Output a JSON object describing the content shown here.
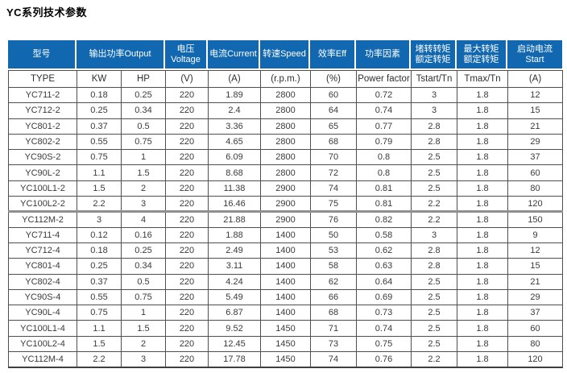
{
  "page": {
    "title": "YC系列技术参数"
  },
  "colors": {
    "header_bg": "#1168b1",
    "header_text": "#ffffff",
    "grid_line": "#4f4f4f",
    "body_text": "#3a3a3a"
  },
  "table": {
    "header": {
      "model": "型号",
      "output": "输出功率Output",
      "voltage": "电压Voltage",
      "current": "电流Current",
      "speed": "转速Speed",
      "eff": "效率Eff",
      "power_factor": "功率因素",
      "tstart_line1": "堵转转矩",
      "tstart_line2": "额定转矩",
      "tmax_line1": "最大转矩",
      "tmax_line2": "额定转矩",
      "start_line1": "启动电流",
      "start_line2": "Start"
    },
    "subheader": [
      "TYPE",
      "KW",
      "HP",
      "(V)",
      "(A)",
      "(r.p.m.)",
      "(%)",
      "Power factor",
      "Tstart/Tn",
      "Tmax/Tn",
      "(A)"
    ],
    "divider_before_rows": [
      8
    ],
    "rows": [
      [
        "YC711-2",
        "0.18",
        "0.25",
        "220",
        "1.89",
        "2800",
        "60",
        "0.72",
        "3",
        "1.8",
        "12"
      ],
      [
        "YC712-2",
        "0.25",
        "0.34",
        "220",
        "2.4",
        "2800",
        "64",
        "0.74",
        "3",
        "1.8",
        "15"
      ],
      [
        "YC801-2",
        "0.37",
        "0.5",
        "220",
        "3.36",
        "2800",
        "65",
        "0.77",
        "2.8",
        "1.8",
        "21"
      ],
      [
        "YC802-2",
        "0.55",
        "0.75",
        "220",
        "4.65",
        "2800",
        "68",
        "0.79",
        "2.8",
        "1.8",
        "29"
      ],
      [
        "YC90S-2",
        "0.75",
        "1",
        "220",
        "6.09",
        "2800",
        "70",
        "0.8",
        "2.5",
        "1.8",
        "37"
      ],
      [
        "YC90L-2",
        "1.1",
        "1.5",
        "220",
        "8.68",
        "2800",
        "72",
        "0.8",
        "2.5",
        "1.8",
        "60"
      ],
      [
        "YC100L1-2",
        "1.5",
        "2",
        "220",
        "11.38",
        "2900",
        "74",
        "0.81",
        "2.5",
        "1.8",
        "80"
      ],
      [
        "YC100L2-2",
        "2.2",
        "3",
        "220",
        "16.46",
        "2900",
        "75",
        "0.81",
        "2.2",
        "1.8",
        "120"
      ],
      [
        "YC112M-2",
        "3",
        "4",
        "220",
        "21.88",
        "2900",
        "76",
        "0.82",
        "2.2",
        "1.8",
        "150"
      ],
      [
        "YC711-4",
        "0.12",
        "0.16",
        "220",
        "1.88",
        "1400",
        "50",
        "0.58",
        "3",
        "1.8",
        "9"
      ],
      [
        "YC712-4",
        "0.18",
        "0.25",
        "220",
        "2.49",
        "1400",
        "53",
        "0.62",
        "2.8",
        "1.8",
        "12"
      ],
      [
        "YC801-4",
        "0.25",
        "0.34",
        "220",
        "3.11",
        "1400",
        "58",
        "0.63",
        "2.8",
        "1.8",
        "15"
      ],
      [
        "YC802-4",
        "0.37",
        "0.5",
        "220",
        "4.24",
        "1400",
        "62",
        "0.64",
        "2.5",
        "1.8",
        "21"
      ],
      [
        "YC90S-4",
        "0.55",
        "0.75",
        "220",
        "5.49",
        "1400",
        "66",
        "0.69",
        "2.5",
        "1.8",
        "29"
      ],
      [
        "YC90L-4",
        "0.75",
        "1",
        "220",
        "6.87",
        "1400",
        "68",
        "0.73",
        "2.5",
        "1.8",
        "37"
      ],
      [
        "YC100L1-4",
        "1.1",
        "1.5",
        "220",
        "9.52",
        "1450",
        "71",
        "0.74",
        "2.5",
        "1.8",
        "60"
      ],
      [
        "YC100L2-4",
        "1.5",
        "2",
        "220",
        "12.45",
        "1450",
        "73",
        "0.75",
        "2.5",
        "1.8",
        "80"
      ],
      [
        "YC112M-4",
        "2.2",
        "3",
        "220",
        "17.78",
        "1450",
        "74",
        "0.76",
        "2.2",
        "1.8",
        "120"
      ]
    ]
  }
}
